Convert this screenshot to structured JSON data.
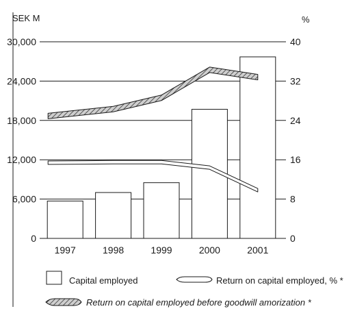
{
  "chart_data": {
    "type": "bar",
    "categories": [
      "1997",
      "1998",
      "1999",
      "2000",
      "2001"
    ],
    "y_left": {
      "unit_label": "SEK M",
      "min": 0,
      "max": 30000,
      "ticks": [
        "0",
        "6,000",
        "12,000",
        "18,000",
        "24,000",
        "30,000"
      ],
      "tick_values": [
        0,
        6000,
        12000,
        18000,
        24000,
        30000
      ]
    },
    "y_right": {
      "unit_label": "%",
      "min": 0,
      "max": 40,
      "ticks": [
        "0",
        "8",
        "16",
        "24",
        "32",
        "40"
      ],
      "tick_values": [
        0,
        8,
        16,
        24,
        32,
        40
      ]
    },
    "grid": true,
    "series": [
      {
        "name": "Capital employed",
        "kind": "bar",
        "axis": "left",
        "values": [
          5700,
          7000,
          8500,
          19700,
          27700
        ]
      },
      {
        "name": "Return on capital employed, % *",
        "kind": "line",
        "axis": "right",
        "style": "outline",
        "values": [
          15.4,
          15.5,
          15.5,
          14.4,
          9.8
        ]
      },
      {
        "name": "Return on capital employed before goodwill amorization *",
        "kind": "line",
        "axis": "right",
        "style": "hatched",
        "values": [
          24.9,
          26.3,
          28.6,
          34.3,
          32.8
        ]
      }
    ],
    "legend_position": "bottom"
  },
  "colors": {
    "ink": "#1a1a1a",
    "hatch": "#8a8a8a",
    "background": "#ffffff"
  }
}
